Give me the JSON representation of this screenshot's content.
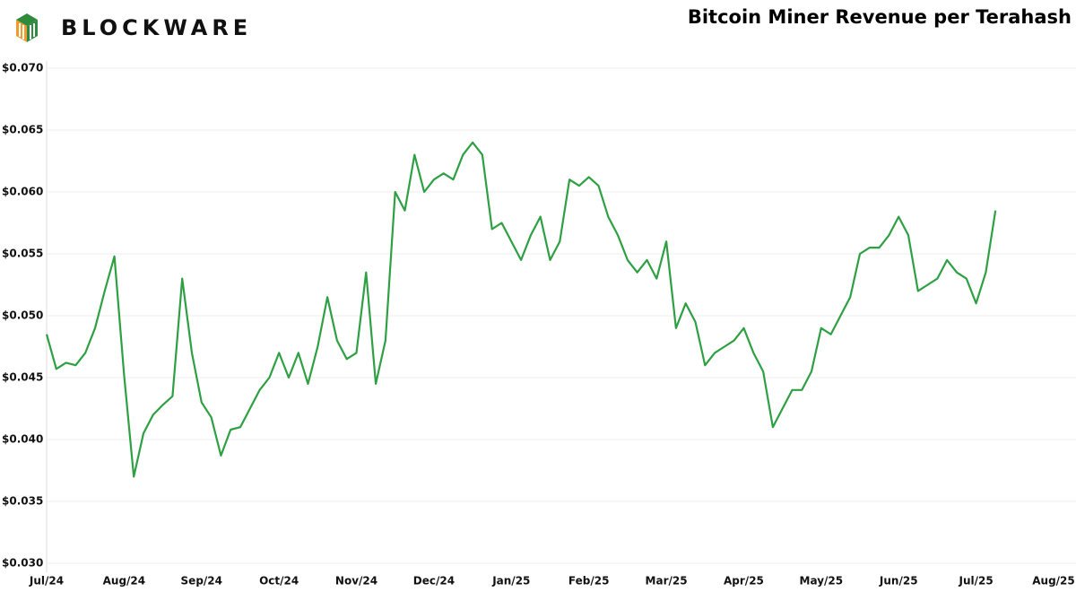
{
  "brand": "BLOCKWARE",
  "chart_data": {
    "type": "line",
    "title": "Bitcoin Miner Revenue per Terahash",
    "categories": [
      "Jul/24",
      null,
      null,
      null,
      null,
      null,
      null,
      null,
      "Aug/24",
      null,
      null,
      null,
      null,
      null,
      null,
      null,
      "Sep/24",
      null,
      null,
      null,
      null,
      null,
      null,
      null,
      "Oct/24",
      null,
      null,
      null,
      null,
      null,
      null,
      null,
      "Nov/24",
      null,
      null,
      null,
      null,
      null,
      null,
      null,
      "Dec/24",
      null,
      null,
      null,
      null,
      null,
      null,
      null,
      "Jan/25",
      null,
      null,
      null,
      null,
      null,
      null,
      null,
      "Feb/25",
      null,
      null,
      null,
      null,
      null,
      null,
      null,
      "Mar/25",
      null,
      null,
      null,
      null,
      null,
      null,
      null,
      "Apr/25",
      null,
      null,
      null,
      null,
      null,
      null,
      null,
      "May/25",
      null,
      null,
      null,
      null,
      null,
      null,
      null,
      "Jun/25",
      null,
      null,
      null,
      null,
      null,
      null,
      null,
      "Jul/25",
      null,
      null,
      null,
      null,
      null,
      null,
      null,
      "Aug/25"
    ],
    "values": [
      0.0485,
      0.0457,
      0.0462,
      0.046,
      0.047,
      0.049,
      0.052,
      0.0548,
      0.0452,
      0.037,
      0.0405,
      0.042,
      0.0428,
      0.0435,
      0.053,
      0.047,
      0.043,
      0.0418,
      0.0387,
      0.0408,
      0.041,
      0.0425,
      0.044,
      0.045,
      0.047,
      0.045,
      0.047,
      0.0445,
      0.0475,
      0.0515,
      0.048,
      0.0465,
      0.047,
      0.0535,
      0.0445,
      0.048,
      0.06,
      0.0585,
      0.063,
      0.06,
      0.061,
      0.0615,
      0.061,
      0.063,
      0.064,
      0.063,
      0.057,
      0.0575,
      0.056,
      0.0545,
      0.0565,
      0.058,
      0.0545,
      0.056,
      0.061,
      0.0605,
      0.0612,
      0.0605,
      0.058,
      0.0565,
      0.0545,
      0.0535,
      0.0545,
      0.053,
      0.056,
      0.049,
      0.051,
      0.0495,
      0.046,
      0.047,
      0.0475,
      0.048,
      0.049,
      0.047,
      0.0455,
      0.041,
      0.0425,
      0.044,
      0.044,
      0.0455,
      0.049,
      0.0485,
      0.05,
      0.0515,
      0.055,
      0.0555,
      0.0555,
      0.0565,
      0.058,
      0.0565,
      0.052,
      0.0525,
      0.053,
      0.0545,
      0.0535,
      0.053,
      0.051,
      0.0535,
      0.0585,
      null,
      null,
      null,
      null,
      null,
      null
    ],
    "color": "#2ea043",
    "ylim": [
      0.03,
      0.07
    ],
    "yticks": [
      {
        "value": 0.03,
        "label": "$0.030"
      },
      {
        "value": 0.035,
        "label": "$0.035"
      },
      {
        "value": 0.04,
        "label": "$0.040"
      },
      {
        "value": 0.045,
        "label": "$0.045"
      },
      {
        "value": 0.05,
        "label": "$0.050"
      },
      {
        "value": 0.055,
        "label": "$0.055"
      },
      {
        "value": 0.06,
        "label": "$0.060"
      },
      {
        "value": 0.065,
        "label": "$0.065"
      },
      {
        "value": 0.07,
        "label": "$0.070"
      }
    ],
    "grid": true
  }
}
